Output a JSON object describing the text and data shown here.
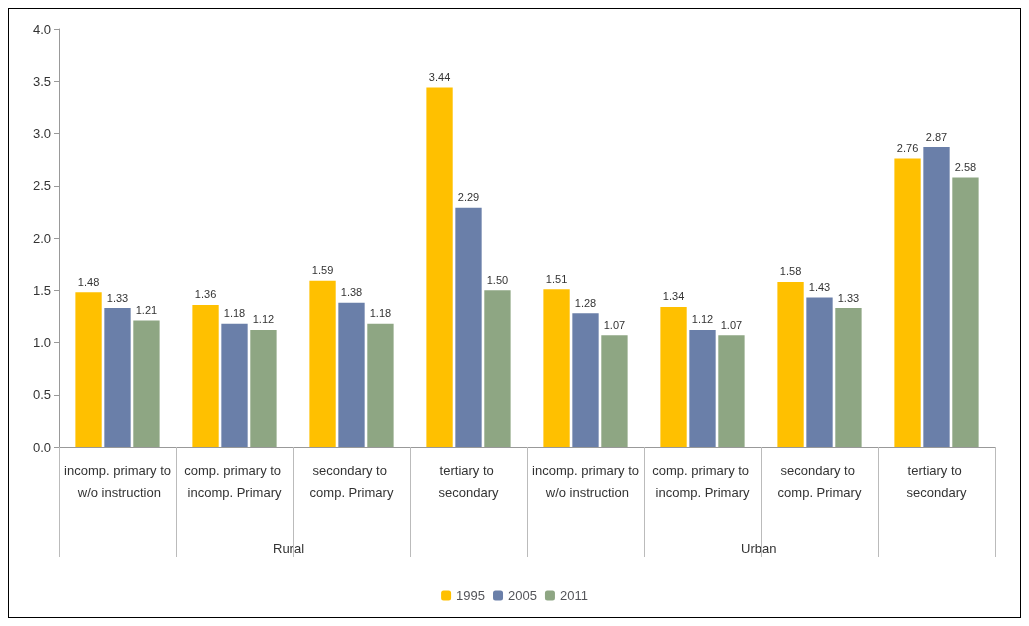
{
  "chart_data": {
    "type": "bar",
    "categories": [
      "incomp. primary to w/o instruction",
      "comp. primary to incomp. Primary",
      "secondary to comp. Primary",
      "tertiary to secondary",
      "incomp. primary to w/o instruction",
      "comp. primary to incomp. Primary",
      "secondary to comp. Primary",
      "tertiary to secondary"
    ],
    "series": [
      {
        "name": "1995",
        "color": "#ffc000",
        "values": [
          1.48,
          1.36,
          1.59,
          3.44,
          1.51,
          1.34,
          1.58,
          2.76
        ],
        "value_labels": [
          "1.48",
          "1.36",
          "1.59",
          "3.44",
          "1.51",
          "1.34",
          "1.58",
          "2.76"
        ]
      },
      {
        "name": "2005",
        "color": "#6a7fa9",
        "values": [
          1.33,
          1.18,
          1.38,
          2.29,
          1.28,
          1.12,
          1.43,
          2.87
        ],
        "value_labels": [
          "1.33",
          "1.18",
          "1.38",
          "2.29",
          "1.28",
          "1.12",
          "1.43",
          "2.87"
        ]
      },
      {
        "name": "2011",
        "color": "#8ea683",
        "values": [
          1.21,
          1.12,
          1.18,
          1.5,
          1.07,
          1.07,
          1.33,
          2.58
        ],
        "value_labels": [
          "1.21",
          "1.12",
          "1.18",
          "1.50",
          "1.07",
          "1.07",
          "1.33",
          "2.58"
        ]
      }
    ],
    "annotations": [
      "Rural",
      "Urban"
    ],
    "ylim": [
      0,
      4
    ],
    "yticks": [
      {
        "value": 0,
        "label": "0.0"
      },
      {
        "value": 0.5,
        "label": "0.5"
      },
      {
        "value": 1,
        "label": "1.0"
      },
      {
        "value": 1.5,
        "label": "1.5"
      },
      {
        "value": 2,
        "label": "2.0"
      },
      {
        "value": 2.5,
        "label": "2.5"
      },
      {
        "value": 3,
        "label": "3.0"
      },
      {
        "value": 3.5,
        "label": "3.5"
      },
      {
        "value": 4,
        "label": "4.0"
      }
    ],
    "grid": false,
    "legend": "bottom"
  }
}
